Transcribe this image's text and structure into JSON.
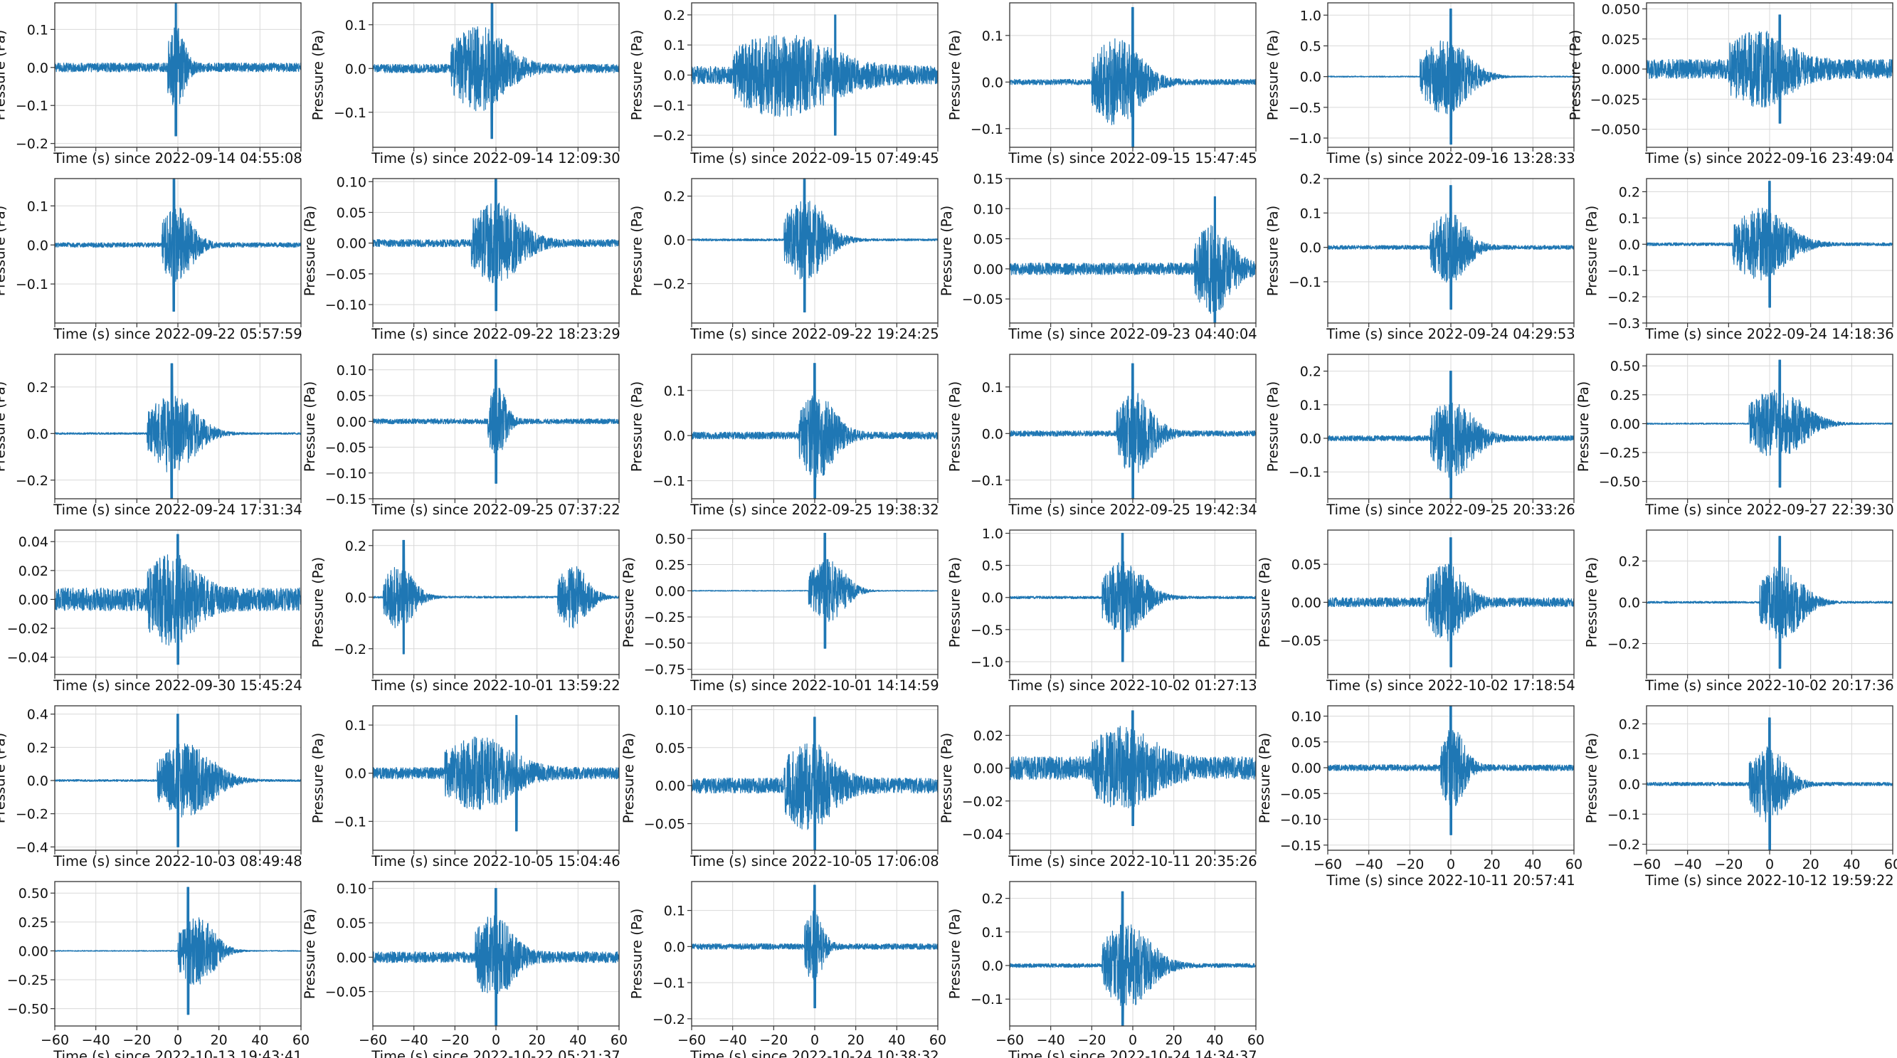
{
  "chart_data": {
    "type": "line",
    "layout": "6 columns x 6 rows grid of waveform panels (34 panels, last row has 4)",
    "ylabel": "Pressure (Pa)",
    "xlabel_prefix": "Time (s) since",
    "xlim": [
      -60,
      60
    ],
    "xticks": [
      -60,
      -40,
      -20,
      0,
      20,
      40,
      60
    ],
    "xtick_labels_shown_on": "bottom panel of each column",
    "grid": true,
    "line_color": "#1f77b4",
    "panels": [
      {
        "xlabel": "Time (s) since 2022-09-14 04:55:08",
        "ylim": [
          -0.21,
          0.17
        ],
        "yticks": [
          -0.2,
          -0.1,
          0.0,
          0.1
        ],
        "ytick_labels": [
          "−0.2",
          "−0.1",
          "0.0",
          "0.1"
        ],
        "series": {
          "peak_x": -1,
          "noise": 0.012,
          "burst": 0.18,
          "onset": -5,
          "dur": 14
        }
      },
      {
        "xlabel": "Time (s) since 2022-09-14 12:09:30",
        "ylim": [
          -0.18,
          0.15
        ],
        "yticks": [
          -0.1,
          0.0,
          0.1
        ],
        "ytick_labels": [
          "−0.1",
          "0.0",
          "0.1"
        ],
        "series": {
          "peak_x": -2,
          "noise": 0.01,
          "burst": 0.16,
          "onset": -22,
          "dur": 45
        }
      },
      {
        "xlabel": "Time (s) since 2022-09-15 07:49:45",
        "ylim": [
          -0.24,
          0.24
        ],
        "yticks": [
          -0.2,
          -0.1,
          0.0,
          0.1,
          0.2
        ],
        "ytick_labels": [
          "−0.2",
          "−0.1",
          "0.0",
          "0.1",
          "0.2"
        ],
        "series": {
          "peak_x": 10,
          "noise": 0.03,
          "burst": 0.2,
          "onset": -40,
          "dur": 80
        }
      },
      {
        "xlabel": "Time (s) since 2022-09-15 15:47:45",
        "ylim": [
          -0.14,
          0.17
        ],
        "yticks": [
          -0.1,
          0.0,
          0.1
        ],
        "ytick_labels": [
          "−0.1",
          "0.0",
          "0.1"
        ],
        "series": {
          "peak_x": 0,
          "noise": 0.006,
          "burst": 0.16,
          "onset": -20,
          "dur": 40
        }
      },
      {
        "xlabel": "Time (s) since 2022-09-16 13:28:33",
        "ylim": [
          -1.15,
          1.2
        ],
        "yticks": [
          -1.0,
          -0.5,
          0.0,
          0.5,
          1.0
        ],
        "ytick_labels": [
          "−1.0",
          "−0.5",
          "0.0",
          "0.5",
          "1.0"
        ],
        "series": {
          "peak_x": 0,
          "noise": 0.01,
          "burst": 1.1,
          "onset": -15,
          "dur": 40
        }
      },
      {
        "xlabel": "Time (s) since 2022-09-16 23:49:04",
        "ylim": [
          -0.065,
          0.055
        ],
        "yticks": [
          -0.05,
          -0.025,
          0.0,
          0.025,
          0.05
        ],
        "ytick_labels": [
          "−0.050",
          "−0.025",
          "0.000",
          "0.025",
          "0.050"
        ],
        "series": {
          "peak_x": 5,
          "noise": 0.008,
          "burst": 0.045,
          "onset": -20,
          "dur": 50
        }
      },
      {
        "xlabel": "Time (s) since 2022-09-22 05:57:59",
        "ylim": [
          -0.2,
          0.17
        ],
        "yticks": [
          -0.1,
          0.0,
          0.1
        ],
        "ytick_labels": [
          "−0.1",
          "0.0",
          "0.1"
        ],
        "series": {
          "peak_x": -2,
          "noise": 0.006,
          "burst": 0.17,
          "onset": -8,
          "dur": 25
        }
      },
      {
        "xlabel": "Time (s) since 2022-09-22 18:23:29",
        "ylim": [
          -0.13,
          0.105
        ],
        "yticks": [
          -0.1,
          -0.05,
          0.0,
          0.05,
          0.1
        ],
        "ytick_labels": [
          "−0.10",
          "−0.05",
          "0.00",
          "0.05",
          "0.10"
        ],
        "series": {
          "peak_x": 0,
          "noise": 0.006,
          "burst": 0.11,
          "onset": -12,
          "dur": 40
        }
      },
      {
        "xlabel": "Time (s) since 2022-09-22 19:24:25",
        "ylim": [
          -0.38,
          0.28
        ],
        "yticks": [
          -0.2,
          0.0,
          0.2
        ],
        "ytick_labels": [
          "−0.2",
          "0.0",
          "0.2"
        ],
        "series": {
          "peak_x": -5,
          "noise": 0.005,
          "burst": 0.33,
          "onset": -15,
          "dur": 35
        }
      },
      {
        "xlabel": "Time (s) since 2022-09-23 04:40:04",
        "ylim": [
          -0.09,
          0.15
        ],
        "yticks": [
          -0.05,
          0.0,
          0.05,
          0.1,
          0.15
        ],
        "ytick_labels": [
          "−0.05",
          "0.00",
          "0.05",
          "0.10",
          "0.15"
        ],
        "series": {
          "peak_x": 40,
          "noise": 0.01,
          "burst": 0.12,
          "onset": 30,
          "dur": 30
        }
      },
      {
        "xlabel": "Time (s) since 2022-09-24 04:29:53",
        "ylim": [
          -0.22,
          0.2
        ],
        "yticks": [
          -0.1,
          0.0,
          0.1,
          0.2
        ],
        "ytick_labels": [
          "−0.1",
          "0.0",
          "0.1",
          "0.2"
        ],
        "series": {
          "peak_x": 0,
          "noise": 0.006,
          "burst": 0.18,
          "onset": -10,
          "dur": 30
        }
      },
      {
        "xlabel": "Time (s) since 2022-09-24 14:18:36",
        "ylim": [
          -0.3,
          0.25
        ],
        "yticks": [
          -0.3,
          -0.2,
          -0.1,
          0.0,
          0.1,
          0.2
        ],
        "ytick_labels": [
          "−0.3",
          "−0.2",
          "−0.1",
          "0.0",
          "0.1",
          "0.2"
        ],
        "series": {
          "peak_x": 0,
          "noise": 0.006,
          "burst": 0.24,
          "onset": -18,
          "dur": 45
        }
      },
      {
        "xlabel": "Time (s) since 2022-09-24 17:31:34",
        "ylim": [
          -0.28,
          0.34
        ],
        "yticks": [
          -0.2,
          0.0,
          0.2
        ],
        "ytick_labels": [
          "−0.2",
          "0.0",
          "0.2"
        ],
        "series": {
          "peak_x": -3,
          "noise": 0.004,
          "burst": 0.3,
          "onset": -15,
          "dur": 40
        }
      },
      {
        "xlabel": "Time (s) since 2022-09-25 07:37:22",
        "ylim": [
          -0.15,
          0.13
        ],
        "yticks": [
          -0.15,
          -0.1,
          -0.05,
          0.0,
          0.05,
          0.1
        ],
        "ytick_labels": [
          "−0.15",
          "−0.10",
          "−0.05",
          "0.00",
          "0.05",
          "0.10"
        ],
        "series": {
          "peak_x": 0,
          "noise": 0.005,
          "burst": 0.12,
          "onset": -4,
          "dur": 15
        }
      },
      {
        "xlabel": "Time (s) since 2022-09-25 19:38:32",
        "ylim": [
          -0.14,
          0.18
        ],
        "yticks": [
          -0.1,
          0.0,
          0.1
        ],
        "ytick_labels": [
          "−0.1",
          "0.0",
          "0.1"
        ],
        "series": {
          "peak_x": 0,
          "noise": 0.008,
          "burst": 0.16,
          "onset": -8,
          "dur": 30
        }
      },
      {
        "xlabel": "Time (s) since 2022-09-25 19:42:34",
        "ylim": [
          -0.14,
          0.17
        ],
        "yticks": [
          -0.1,
          0.0,
          0.1
        ],
        "ytick_labels": [
          "−0.1",
          "0.0",
          "0.1"
        ],
        "series": {
          "peak_x": 0,
          "noise": 0.006,
          "burst": 0.15,
          "onset": -8,
          "dur": 30
        }
      },
      {
        "xlabel": "Time (s) since 2022-09-25 20:33:26",
        "ylim": [
          -0.18,
          0.25
        ],
        "yticks": [
          -0.1,
          0.0,
          0.1,
          0.2
        ],
        "ytick_labels": [
          "−0.1",
          "0.0",
          "0.1",
          "0.2"
        ],
        "series": {
          "peak_x": 0,
          "noise": 0.008,
          "burst": 0.2,
          "onset": -10,
          "dur": 35
        }
      },
      {
        "xlabel": "Time (s) since 2022-09-27 22:39:30",
        "ylim": [
          -0.65,
          0.6
        ],
        "yticks": [
          -0.5,
          -0.25,
          0.0,
          0.25,
          0.5
        ],
        "ytick_labels": [
          "−0.50",
          "−0.25",
          "0.00",
          "0.25",
          "0.50"
        ],
        "series": {
          "peak_x": 5,
          "noise": 0.006,
          "burst": 0.55,
          "onset": -10,
          "dur": 45
        }
      },
      {
        "xlabel": "Time (s) since 2022-09-30 15:45:24",
        "ylim": [
          -0.052,
          0.048
        ],
        "yticks": [
          -0.04,
          -0.02,
          0.0,
          0.02,
          0.04
        ],
        "ytick_labels": [
          "−0.04",
          "−0.02",
          "0.00",
          "0.02",
          "0.04"
        ],
        "series": {
          "peak_x": 0,
          "noise": 0.008,
          "burst": 0.045,
          "onset": -15,
          "dur": 40
        }
      },
      {
        "xlabel": "Time (s) since 2022-10-01 13:59:22",
        "ylim": [
          -0.3,
          0.26
        ],
        "yticks": [
          -0.2,
          0.0,
          0.2
        ],
        "ytick_labels": [
          "−0.2",
          "0.0",
          "0.2"
        ],
        "series": {
          "peak_x": -45,
          "noise": 0.004,
          "burst": 0.22,
          "onset": -55,
          "dur": 25,
          "second_burst_onset": 30
        }
      },
      {
        "xlabel": "Time (s) since 2022-10-01 14:14:59",
        "ylim": [
          -0.8,
          0.58
        ],
        "yticks": [
          -0.75,
          -0.5,
          -0.25,
          0.0,
          0.25,
          0.5
        ],
        "ytick_labels": [
          "−0.75",
          "−0.50",
          "−0.25",
          "0.00",
          "0.25",
          "0.50"
        ],
        "series": {
          "peak_x": 5,
          "noise": 0.004,
          "burst": 0.55,
          "onset": -3,
          "dur": 30
        }
      },
      {
        "xlabel": "Time (s) since 2022-10-02 01:27:13",
        "ylim": [
          -1.2,
          1.05
        ],
        "yticks": [
          -1.0,
          -0.5,
          0.0,
          0.5,
          1.0
        ],
        "ytick_labels": [
          "−1.0",
          "−0.5",
          "0.0",
          "0.5",
          "1.0"
        ],
        "series": {
          "peak_x": -5,
          "noise": 0.02,
          "burst": 1.0,
          "onset": -15,
          "dur": 35
        }
      },
      {
        "xlabel": "Time (s) since 2022-10-02 17:18:54",
        "ylim": [
          -0.095,
          0.095
        ],
        "yticks": [
          -0.05,
          0.0,
          0.05
        ],
        "ytick_labels": [
          "−0.05",
          "0.00",
          "0.05"
        ],
        "series": {
          "peak_x": 0,
          "noise": 0.006,
          "burst": 0.085,
          "onset": -12,
          "dur": 30
        }
      },
      {
        "xlabel": "Time (s) since 2022-10-02 20:17:36",
        "ylim": [
          -0.35,
          0.35
        ],
        "yticks": [
          -0.2,
          0.0,
          0.2
        ],
        "ytick_labels": [
          "−0.2",
          "0.0",
          "0.2"
        ],
        "series": {
          "peak_x": 5,
          "noise": 0.005,
          "burst": 0.32,
          "onset": -5,
          "dur": 35
        }
      },
      {
        "xlabel": "Time (s) since 2022-10-03 08:49:48",
        "ylim": [
          -0.42,
          0.45
        ],
        "yticks": [
          -0.4,
          -0.2,
          0.0,
          0.2,
          0.4
        ],
        "ytick_labels": [
          "−0.4",
          "−0.2",
          "0.0",
          "0.2",
          "0.4"
        ],
        "series": {
          "peak_x": 0,
          "noise": 0.006,
          "burst": 0.4,
          "onset": -10,
          "dur": 45
        }
      },
      {
        "xlabel": "Time (s) since 2022-10-05 15:04:46",
        "ylim": [
          -0.16,
          0.14
        ],
        "yticks": [
          -0.1,
          0.0,
          0.1
        ],
        "ytick_labels": [
          "−0.1",
          "0.0",
          "0.1"
        ],
        "series": {
          "peak_x": 10,
          "noise": 0.012,
          "burst": 0.12,
          "onset": -25,
          "dur": 55
        }
      },
      {
        "xlabel": "Time (s) since 2022-10-05 17:06:08",
        "ylim": [
          -0.085,
          0.105
        ],
        "yticks": [
          -0.05,
          0.0,
          0.05,
          0.1
        ],
        "ytick_labels": [
          "−0.05",
          "0.00",
          "0.05",
          "0.10"
        ],
        "series": {
          "peak_x": 0,
          "noise": 0.01,
          "burst": 0.09,
          "onset": -15,
          "dur": 40
        }
      },
      {
        "xlabel": "Time (s) since 2022-10-11 20:35:26",
        "ylim": [
          -0.05,
          0.038
        ],
        "yticks": [
          -0.04,
          -0.02,
          0.0,
          0.02
        ],
        "ytick_labels": [
          "−0.04",
          "−0.02",
          "0.00",
          "0.02"
        ],
        "series": {
          "peak_x": 0,
          "noise": 0.007,
          "burst": 0.035,
          "onset": -20,
          "dur": 50
        }
      },
      {
        "xlabel": "Time (s) since 2022-10-11 20:57:41",
        "ylim": [
          -0.16,
          0.12
        ],
        "yticks": [
          -0.15,
          -0.1,
          -0.05,
          0.0,
          0.05,
          0.1
        ],
        "ytick_labels": [
          "−0.15",
          "−0.10",
          "−0.05",
          "0.00",
          "0.05",
          "0.10"
        ],
        "series": {
          "peak_x": 0,
          "noise": 0.006,
          "burst": 0.13,
          "onset": -5,
          "dur": 20
        }
      },
      {
        "xlabel": "Time (s) since 2022-10-12 19:59:22",
        "ylim": [
          -0.22,
          0.26
        ],
        "yticks": [
          -0.2,
          -0.1,
          0.0,
          0.1,
          0.2
        ],
        "ytick_labels": [
          "−0.2",
          "−0.1",
          "0.0",
          "0.1",
          "0.2"
        ],
        "series": {
          "peak_x": 0,
          "noise": 0.006,
          "burst": 0.22,
          "onset": -10,
          "dur": 30
        }
      },
      {
        "xlabel": "Time (s) since 2022-10-13 19:43:41",
        "ylim": [
          -0.65,
          0.6
        ],
        "yticks": [
          -0.5,
          -0.25,
          0.0,
          0.25,
          0.5
        ],
        "ytick_labels": [
          "−0.50",
          "−0.25",
          "0.00",
          "0.25",
          "0.50"
        ],
        "series": {
          "peak_x": 5,
          "noise": 0.004,
          "burst": 0.55,
          "onset": 0,
          "dur": 30
        }
      },
      {
        "xlabel": "Time (s) since 2022-10-22 05:21:37",
        "ylim": [
          -0.1,
          0.11
        ],
        "yticks": [
          -0.05,
          0.0,
          0.05,
          0.1
        ],
        "ytick_labels": [
          "−0.05",
          "0.00",
          "0.05",
          "0.10"
        ],
        "series": {
          "peak_x": 0,
          "noise": 0.008,
          "burst": 0.1,
          "onset": -10,
          "dur": 30
        }
      },
      {
        "xlabel": "Time (s) since 2022-10-24 10:38:32",
        "ylim": [
          -0.22,
          0.18
        ],
        "yticks": [
          -0.2,
          -0.1,
          0.0,
          0.1
        ],
        "ytick_labels": [
          "−0.2",
          "−0.1",
          "0.0",
          "0.1"
        ],
        "series": {
          "peak_x": 0,
          "noise": 0.008,
          "burst": 0.17,
          "onset": -5,
          "dur": 15
        }
      },
      {
        "xlabel": "Time (s) since 2022-10-24 14:34:37",
        "ylim": [
          -0.18,
          0.25
        ],
        "yticks": [
          -0.1,
          0.0,
          0.1,
          0.2
        ],
        "ytick_labels": [
          "−0.1",
          "0.0",
          "0.1",
          "0.2"
        ],
        "series": {
          "peak_x": -5,
          "noise": 0.006,
          "burst": 0.22,
          "onset": -15,
          "dur": 40
        }
      }
    ]
  }
}
